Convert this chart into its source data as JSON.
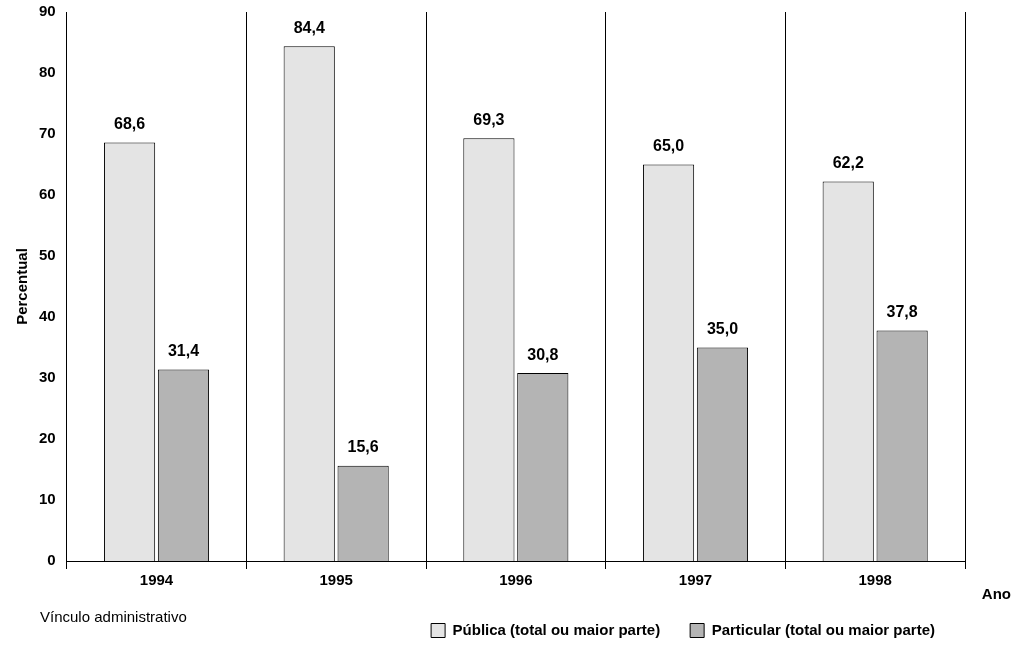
{
  "chart_data": {
    "type": "bar",
    "xlabel": "Ano",
    "ylabel": "Percentual",
    "legend_title": "Vínculo administrativo",
    "categories": [
      "1994",
      "1995",
      "1996",
      "1997",
      "1998"
    ],
    "series": [
      {
        "name": "Pública (total ou maior parte)",
        "color": "#e4e4e4",
        "values": [
          68.6,
          84.4,
          69.3,
          65.0,
          62.2
        ],
        "value_labels": [
          "68,6",
          "84,4",
          "69,3",
          "65,0",
          "62,2"
        ]
      },
      {
        "name": "Particular (total ou maior parte)",
        "color": "#b4b4b4",
        "values": [
          31.4,
          15.6,
          30.8,
          35.0,
          37.8
        ],
        "value_labels": [
          "31,4",
          "15,6",
          "30,8",
          "35,0",
          "37,8"
        ]
      }
    ],
    "ylim": [
      0,
      90
    ],
    "yticks": [
      0,
      10,
      20,
      30,
      40,
      50,
      60,
      70,
      80,
      90
    ],
    "grid": "x",
    "legend": "bottom right"
  }
}
